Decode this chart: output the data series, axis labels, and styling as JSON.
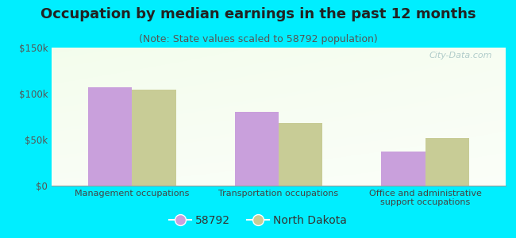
{
  "title": "Occupation by median earnings in the past 12 months",
  "subtitle": "(Note: State values scaled to 58792 population)",
  "categories": [
    "Management occupations",
    "Transportation occupations",
    "Office and administrative\nsupport occupations"
  ],
  "series_58792": [
    107000,
    80000,
    37000
  ],
  "series_nd": [
    104000,
    68000,
    52000
  ],
  "bar_color_58792": "#c9a0dc",
  "bar_color_nd": "#c8cc96",
  "ylim": [
    0,
    150000
  ],
  "yticks": [
    0,
    50000,
    100000,
    150000
  ],
  "ytick_labels": [
    "$0",
    "$50k",
    "$100k",
    "$150k"
  ],
  "legend_label_58792": "58792",
  "legend_label_nd": "North Dakota",
  "background_outer": "#00eeff",
  "title_fontsize": 13,
  "subtitle_fontsize": 9,
  "watermark": "City-Data.com",
  "title_color": "#222222",
  "subtitle_color": "#555555",
  "tick_label_color": "#555555",
  "xticklabel_color": "#444444"
}
